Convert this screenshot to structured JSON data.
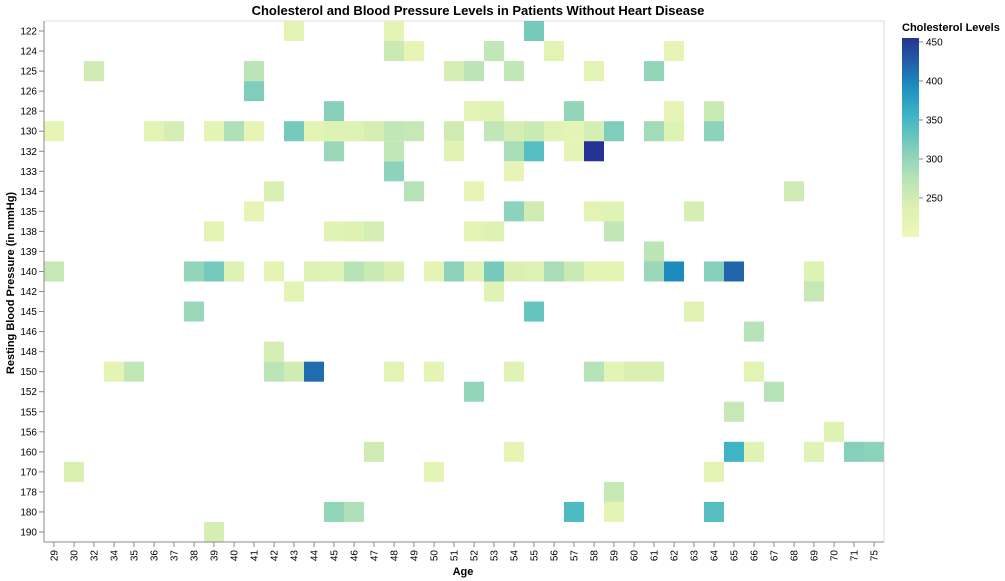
{
  "chart_data": {
    "type": "heatmap",
    "title": "Cholesterol and Blood Pressure Levels in Patients Without Heart Disease",
    "xlabel": "Age",
    "ylabel": "Resting Blood Pressure (in mmHg)",
    "x_categories": [
      "29",
      "30",
      "32",
      "34",
      "35",
      "36",
      "37",
      "38",
      "39",
      "40",
      "41",
      "42",
      "43",
      "44",
      "45",
      "46",
      "47",
      "48",
      "49",
      "50",
      "51",
      "52",
      "53",
      "54",
      "55",
      "56",
      "57",
      "58",
      "59",
      "60",
      "61",
      "62",
      "63",
      "64",
      "65",
      "66",
      "67",
      "68",
      "69",
      "70",
      "71",
      "75"
    ],
    "y_categories": [
      "122",
      "124",
      "125",
      "126",
      "128",
      "130",
      "132",
      "133",
      "134",
      "135",
      "138",
      "139",
      "140",
      "142",
      "145",
      "146",
      "148",
      "150",
      "152",
      "155",
      "156",
      "160",
      "170",
      "178",
      "180",
      "190"
    ],
    "color_domain": [
      200,
      455
    ],
    "legend": {
      "title": "Cholesterol Levels",
      "ticks": [
        "450",
        "400",
        "350",
        "300",
        "250"
      ],
      "tick_values": [
        450,
        400,
        350,
        300,
        250
      ],
      "position": "right"
    },
    "cells": [
      {
        "x": "43",
        "y": "122",
        "v": 225
      },
      {
        "x": "48",
        "y": "122",
        "v": 220
      },
      {
        "x": "55",
        "y": "122",
        "v": 320
      },
      {
        "x": "48",
        "y": "124",
        "v": 255
      },
      {
        "x": "49",
        "y": "124",
        "v": 215
      },
      {
        "x": "53",
        "y": "124",
        "v": 265
      },
      {
        "x": "56",
        "y": "124",
        "v": 225
      },
      {
        "x": "62",
        "y": "124",
        "v": 215
      },
      {
        "x": "32",
        "y": "125",
        "v": 250
      },
      {
        "x": "41",
        "y": "125",
        "v": 270
      },
      {
        "x": "51",
        "y": "125",
        "v": 245
      },
      {
        "x": "52",
        "y": "125",
        "v": 270
      },
      {
        "x": "54",
        "y": "125",
        "v": 265
      },
      {
        "x": "58",
        "y": "125",
        "v": 225
      },
      {
        "x": "61",
        "y": "125",
        "v": 300
      },
      {
        "x": "41",
        "y": "126",
        "v": 315
      },
      {
        "x": "45",
        "y": "128",
        "v": 310
      },
      {
        "x": "52",
        "y": "128",
        "v": 225
      },
      {
        "x": "53",
        "y": "128",
        "v": 230
      },
      {
        "x": "57",
        "y": "128",
        "v": 300
      },
      {
        "x": "62",
        "y": "128",
        "v": 215
      },
      {
        "x": "64",
        "y": "128",
        "v": 255
      },
      {
        "x": "29",
        "y": "130",
        "v": 215
      },
      {
        "x": "36",
        "y": "130",
        "v": 225
      },
      {
        "x": "37",
        "y": "130",
        "v": 245
      },
      {
        "x": "39",
        "y": "130",
        "v": 220
      },
      {
        "x": "40",
        "y": "130",
        "v": 280
      },
      {
        "x": "41",
        "y": "130",
        "v": 215
      },
      {
        "x": "43",
        "y": "130",
        "v": 320
      },
      {
        "x": "44",
        "y": "130",
        "v": 225
      },
      {
        "x": "45",
        "y": "130",
        "v": 235
      },
      {
        "x": "46",
        "y": "130",
        "v": 235
      },
      {
        "x": "47",
        "y": "130",
        "v": 245
      },
      {
        "x": "48",
        "y": "130",
        "v": 265
      },
      {
        "x": "49",
        "y": "130",
        "v": 260
      },
      {
        "x": "51",
        "y": "130",
        "v": 250
      },
      {
        "x": "53",
        "y": "130",
        "v": 265
      },
      {
        "x": "54",
        "y": "130",
        "v": 245
      },
      {
        "x": "55",
        "y": "130",
        "v": 255
      },
      {
        "x": "56",
        "y": "130",
        "v": 230
      },
      {
        "x": "57",
        "y": "130",
        "v": 220
      },
      {
        "x": "58",
        "y": "130",
        "v": 245
      },
      {
        "x": "59",
        "y": "130",
        "v": 315
      },
      {
        "x": "61",
        "y": "130",
        "v": 290
      },
      {
        "x": "62",
        "y": "130",
        "v": 235
      },
      {
        "x": "64",
        "y": "130",
        "v": 305
      },
      {
        "x": "45",
        "y": "132",
        "v": 295
      },
      {
        "x": "48",
        "y": "132",
        "v": 265
      },
      {
        "x": "51",
        "y": "132",
        "v": 230
      },
      {
        "x": "54",
        "y": "132",
        "v": 285
      },
      {
        "x": "55",
        "y": "132",
        "v": 340
      },
      {
        "x": "57",
        "y": "132",
        "v": 220
      },
      {
        "x": "58",
        "y": "132",
        "v": 455
      },
      {
        "x": "48",
        "y": "133",
        "v": 305
      },
      {
        "x": "54",
        "y": "133",
        "v": 215
      },
      {
        "x": "42",
        "y": "134",
        "v": 240
      },
      {
        "x": "49",
        "y": "134",
        "v": 275
      },
      {
        "x": "52",
        "y": "134",
        "v": 215
      },
      {
        "x": "68",
        "y": "134",
        "v": 250
      },
      {
        "x": "41",
        "y": "135",
        "v": 215
      },
      {
        "x": "54",
        "y": "135",
        "v": 305
      },
      {
        "x": "55",
        "y": "135",
        "v": 250
      },
      {
        "x": "58",
        "y": "135",
        "v": 225
      },
      {
        "x": "59",
        "y": "135",
        "v": 230
      },
      {
        "x": "63",
        "y": "135",
        "v": 245
      },
      {
        "x": "39",
        "y": "138",
        "v": 225
      },
      {
        "x": "45",
        "y": "138",
        "v": 230
      },
      {
        "x": "46",
        "y": "138",
        "v": 235
      },
      {
        "x": "47",
        "y": "138",
        "v": 245
      },
      {
        "x": "52",
        "y": "138",
        "v": 225
      },
      {
        "x": "53",
        "y": "138",
        "v": 235
      },
      {
        "x": "59",
        "y": "138",
        "v": 265
      },
      {
        "x": "61",
        "y": "139",
        "v": 270
      },
      {
        "x": "29",
        "y": "140",
        "v": 260
      },
      {
        "x": "38",
        "y": "140",
        "v": 300
      },
      {
        "x": "39",
        "y": "140",
        "v": 320
      },
      {
        "x": "40",
        "y": "140",
        "v": 235
      },
      {
        "x": "42",
        "y": "140",
        "v": 225
      },
      {
        "x": "44",
        "y": "140",
        "v": 235
      },
      {
        "x": "45",
        "y": "140",
        "v": 230
      },
      {
        "x": "46",
        "y": "140",
        "v": 275
      },
      {
        "x": "47",
        "y": "140",
        "v": 255
      },
      {
        "x": "48",
        "y": "140",
        "v": 240
      },
      {
        "x": "50",
        "y": "140",
        "v": 225
      },
      {
        "x": "51",
        "y": "140",
        "v": 305
      },
      {
        "x": "52",
        "y": "140",
        "v": 230
      },
      {
        "x": "53",
        "y": "140",
        "v": 320
      },
      {
        "x": "54",
        "y": "140",
        "v": 240
      },
      {
        "x": "55",
        "y": "140",
        "v": 235
      },
      {
        "x": "56",
        "y": "140",
        "v": 285
      },
      {
        "x": "57",
        "y": "140",
        "v": 255
      },
      {
        "x": "58",
        "y": "140",
        "v": 225
      },
      {
        "x": "59",
        "y": "140",
        "v": 220
      },
      {
        "x": "61",
        "y": "140",
        "v": 295
      },
      {
        "x": "62",
        "y": "140",
        "v": 395
      },
      {
        "x": "64",
        "y": "140",
        "v": 310
      },
      {
        "x": "65",
        "y": "140",
        "v": 420
      },
      {
        "x": "69",
        "y": "140",
        "v": 235
      },
      {
        "x": "43",
        "y": "142",
        "v": 220
      },
      {
        "x": "53",
        "y": "142",
        "v": 230
      },
      {
        "x": "69",
        "y": "142",
        "v": 260
      },
      {
        "x": "38",
        "y": "145",
        "v": 295
      },
      {
        "x": "55",
        "y": "145",
        "v": 330
      },
      {
        "x": "63",
        "y": "145",
        "v": 230
      },
      {
        "x": "66",
        "y": "146",
        "v": 275
      },
      {
        "x": "42",
        "y": "148",
        "v": 245
      },
      {
        "x": "34",
        "y": "150",
        "v": 220
      },
      {
        "x": "35",
        "y": "150",
        "v": 265
      },
      {
        "x": "42",
        "y": "150",
        "v": 270
      },
      {
        "x": "43",
        "y": "150",
        "v": 250
      },
      {
        "x": "44",
        "y": "150",
        "v": 415
      },
      {
        "x": "48",
        "y": "150",
        "v": 225
      },
      {
        "x": "50",
        "y": "150",
        "v": 220
      },
      {
        "x": "54",
        "y": "150",
        "v": 230
      },
      {
        "x": "58",
        "y": "150",
        "v": 275
      },
      {
        "x": "59",
        "y": "150",
        "v": 220
      },
      {
        "x": "60",
        "y": "150",
        "v": 240
      },
      {
        "x": "61",
        "y": "150",
        "v": 240
      },
      {
        "x": "66",
        "y": "150",
        "v": 225
      },
      {
        "x": "52",
        "y": "152",
        "v": 300
      },
      {
        "x": "67",
        "y": "152",
        "v": 275
      },
      {
        "x": "65",
        "y": "155",
        "v": 260
      },
      {
        "x": "70",
        "y": "156",
        "v": 235
      },
      {
        "x": "47",
        "y": "160",
        "v": 250
      },
      {
        "x": "54",
        "y": "160",
        "v": 215
      },
      {
        "x": "65",
        "y": "160",
        "v": 355
      },
      {
        "x": "66",
        "y": "160",
        "v": 230
      },
      {
        "x": "69",
        "y": "160",
        "v": 230
      },
      {
        "x": "71",
        "y": "160",
        "v": 310
      },
      {
        "x": "75",
        "y": "160",
        "v": 305
      },
      {
        "x": "30",
        "y": "170",
        "v": 240
      },
      {
        "x": "50",
        "y": "170",
        "v": 220
      },
      {
        "x": "64",
        "y": "170",
        "v": 225
      },
      {
        "x": "59",
        "y": "178",
        "v": 260
      },
      {
        "x": "45",
        "y": "180",
        "v": 300
      },
      {
        "x": "46",
        "y": "180",
        "v": 280
      },
      {
        "x": "57",
        "y": "180",
        "v": 345
      },
      {
        "x": "59",
        "y": "180",
        "v": 220
      },
      {
        "x": "64",
        "y": "180",
        "v": 340
      },
      {
        "x": "39",
        "y": "190",
        "v": 245
      }
    ]
  }
}
